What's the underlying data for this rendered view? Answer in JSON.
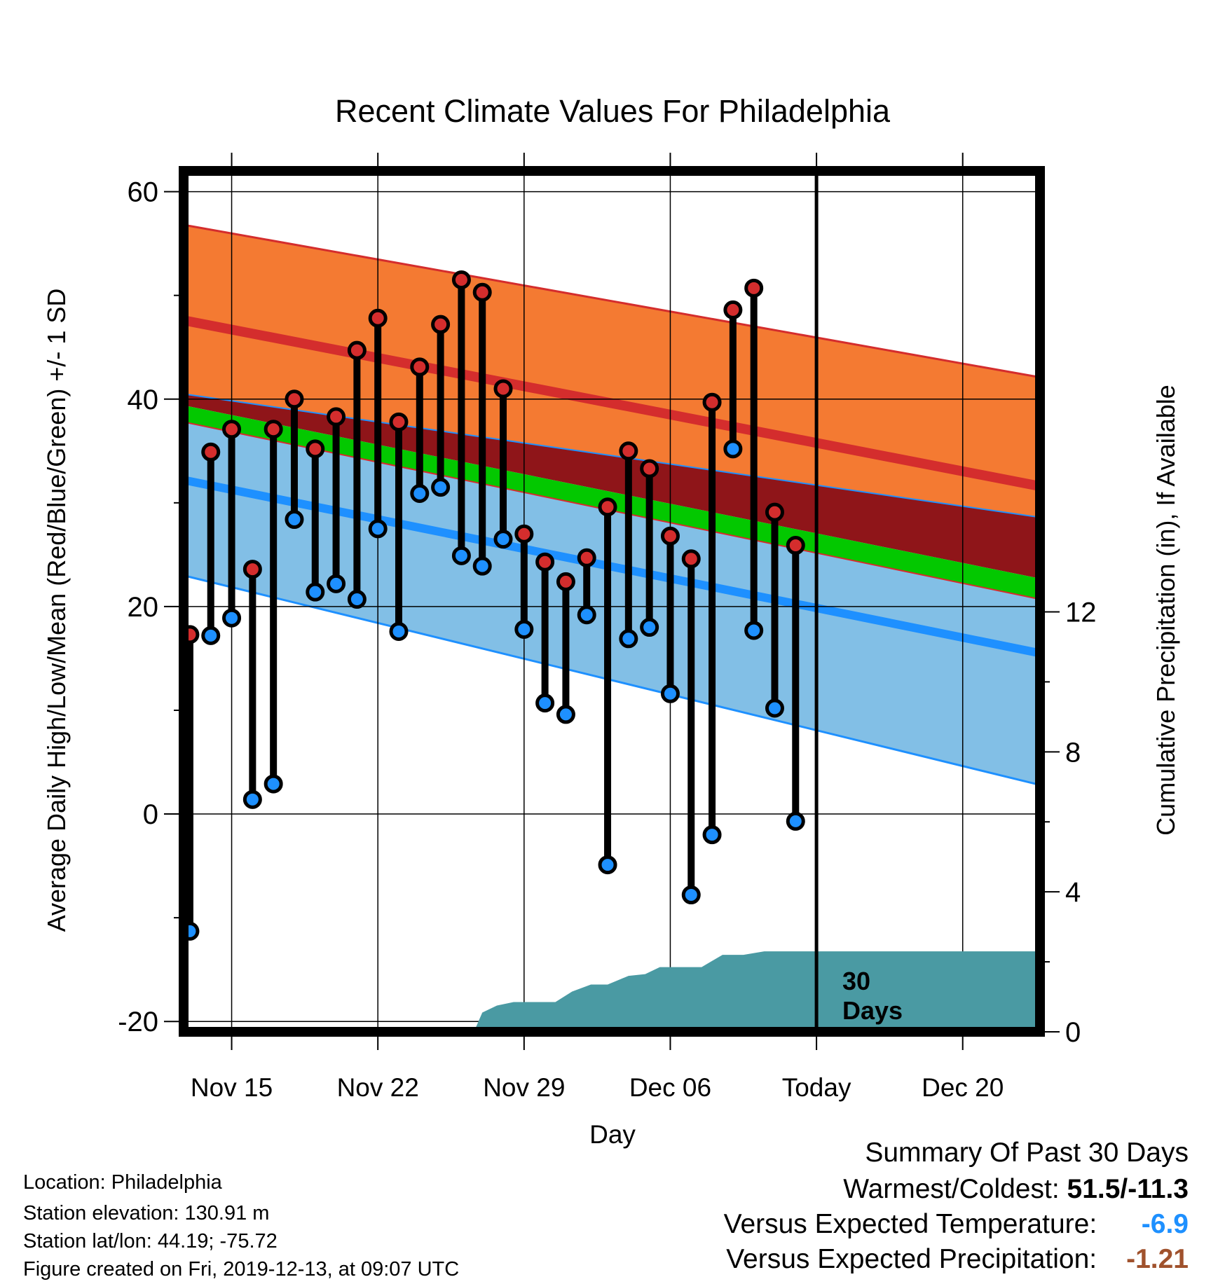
{
  "chart_data": {
    "type": "line",
    "title": "Recent Climate Values For Philadelphia",
    "xlabel": "Day",
    "ylabel": "Average Daily High/Low/Mean (Red/Blue/Green) +/- 1 SD",
    "y2label": "Cumulative Precipitation (in), If Available",
    "ylim": [
      -21,
      62
    ],
    "y2lim": [
      0,
      24.6
    ],
    "xlim": [
      -0.3,
      40.7
    ],
    "x_tick_positions": [
      2,
      9,
      16,
      23,
      30,
      37
    ],
    "x_tick_labels": [
      "Nov 15",
      "Nov 22",
      "Nov 29",
      "Dec 06",
      "Today",
      "Dec 20"
    ],
    "y_ticks": [
      -20,
      0,
      20,
      40,
      60
    ],
    "y2_ticks": [
      0,
      4,
      8,
      12
    ],
    "today_index": 30,
    "today_annotation": [
      "30",
      "Days"
    ],
    "grid": true,
    "normals": {
      "x": [
        -0.3,
        40.7
      ],
      "high_plus_sd": [
        56.8,
        42.1
      ],
      "high_mean": [
        47.6,
        31.6
      ],
      "high_minus_sd": [
        40.5,
        28.6
      ],
      "mean_plus_sd": [
        39.4,
        22.7
      ],
      "mean_minus_sd": [
        37.8,
        20.7
      ],
      "low_plus_sd": [
        37.8,
        20.7
      ],
      "low_mean": [
        32.2,
        15.5
      ],
      "low_minus_sd": [
        23.0,
        2.8
      ]
    },
    "days": [
      0,
      1,
      2,
      3,
      4,
      5,
      6,
      7,
      8,
      9,
      10,
      11,
      12,
      13,
      14,
      15,
      16,
      17,
      18,
      19,
      20,
      21,
      22,
      23,
      24,
      25,
      26,
      27,
      28,
      29
    ],
    "highs": [
      17.3,
      34.9,
      37.1,
      23.6,
      37.1,
      40.0,
      35.2,
      38.3,
      44.7,
      47.8,
      37.8,
      43.1,
      47.2,
      51.5,
      50.3,
      41.0,
      27.0,
      24.3,
      22.4,
      24.7,
      29.6,
      35.0,
      33.3,
      26.8,
      24.6,
      39.7,
      48.6,
      50.7,
      29.1,
      25.9
    ],
    "lows": [
      -11.3,
      17.2,
      18.9,
      1.4,
      2.9,
      28.4,
      21.4,
      22.2,
      20.7,
      27.5,
      17.6,
      30.9,
      31.5,
      24.9,
      23.9,
      26.5,
      17.8,
      10.7,
      9.6,
      19.2,
      -4.9,
      16.9,
      18.0,
      11.6,
      -7.8,
      -2.0,
      35.2,
      17.7,
      10.2,
      -0.7
    ],
    "precip_x": [
      -0.3,
      13.6,
      14.0,
      14.7,
      15.5,
      16.5,
      17.5,
      18.3,
      19.2,
      20.0,
      21.0,
      21.8,
      22.5,
      23.5,
      24.5,
      25.5,
      26.5,
      27.5,
      28.5,
      30.0,
      40.7
    ],
    "precip_y": [
      0,
      0,
      0.55,
      0.75,
      0.85,
      0.85,
      0.85,
      1.15,
      1.35,
      1.35,
      1.6,
      1.65,
      1.85,
      1.85,
      1.85,
      2.2,
      2.2,
      2.3,
      2.3,
      2.3,
      2.3
    ],
    "colors": {
      "high_band": "#f47a32",
      "high_line": "#d42d2d",
      "mean_band": "#03c800",
      "overlap": "#8f1519",
      "low_band": "#82bfe6",
      "low_line": "#1e90ff",
      "precip": "#4a9aa3",
      "high_marker": "#d42d2d",
      "low_marker": "#1e90ff"
    }
  },
  "info": {
    "location": "Location: Philadelphia",
    "elevation": "Station elevation: 130.91 m",
    "latlon": "Station lat/lon: 44.19; -75.72",
    "created": "Figure created on Fri, 2019-12-13, at 09:07 UTC"
  },
  "summary": {
    "heading": "Summary Of Past 30 Days",
    "warmest_label": "Warmest/Coldest:",
    "warmest_value": "51.5/-11.3",
    "temp_label": "Versus Expected Temperature:",
    "temp_value": "-6.9",
    "temp_color": "#1e90ff",
    "precip_label": "Versus Expected Precipitation:",
    "precip_value": "-1.21",
    "precip_color": "#a0522d"
  }
}
